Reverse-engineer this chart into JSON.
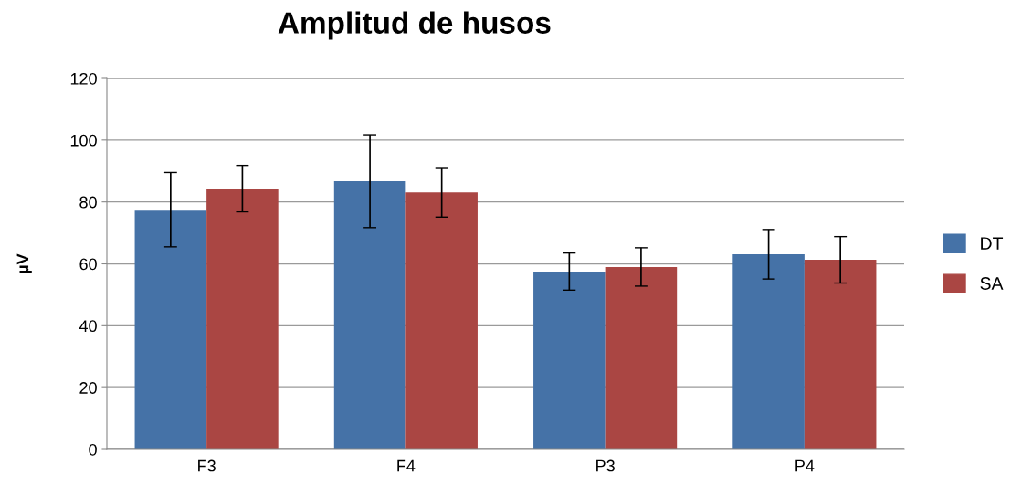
{
  "chart_data": {
    "type": "bar",
    "title": "Amplitud de husos",
    "ylabel": "µV",
    "categories": [
      "F3",
      "F4",
      "P3",
      "P4"
    ],
    "series": [
      {
        "name": "DT",
        "color": "#4572a7",
        "values": [
          77.5,
          86.7,
          57.5,
          63.1
        ],
        "errors": [
          12,
          15,
          6,
          8
        ]
      },
      {
        "name": "SA",
        "color": "#aa4643",
        "values": [
          84.3,
          83.1,
          59.0,
          61.3
        ],
        "errors": [
          7.5,
          8,
          6.2,
          7.5
        ]
      }
    ],
    "ylim": [
      0,
      120
    ],
    "yticks": [
      0,
      20,
      40,
      60,
      80,
      100,
      120
    ],
    "grid": "y",
    "legend": "right"
  }
}
